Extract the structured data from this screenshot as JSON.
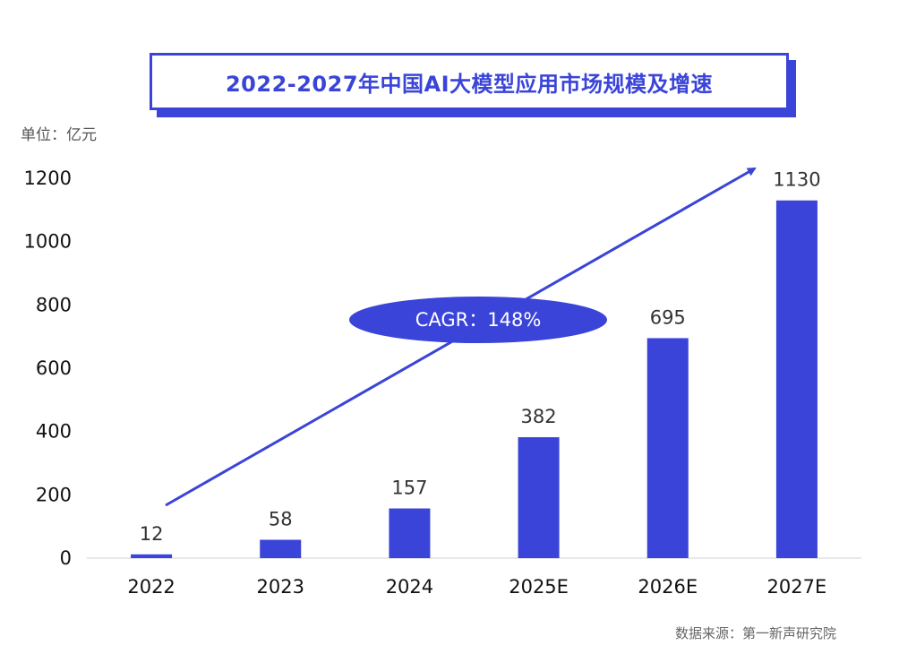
{
  "title": "2022-2027年中国AI大模型应用市场规模及增速",
  "unit_label": "单位：亿元",
  "source": "数据来源：第一新声研究院",
  "cagr_label": "CAGR：148%",
  "colors": {
    "accent": "#3a44d8",
    "bar": "#3a44d8"
  },
  "chart_data": {
    "type": "bar",
    "categories": [
      "2022",
      "2023",
      "2024",
      "2025E",
      "2026E",
      "2027E"
    ],
    "values": [
      12,
      58,
      157,
      382,
      695,
      1130
    ],
    "yticks": [
      0,
      200,
      400,
      600,
      800,
      1000,
      1200
    ],
    "ylim": [
      0,
      1200
    ],
    "grid": false,
    "legend": "none",
    "annotation": "CAGR：148%"
  }
}
